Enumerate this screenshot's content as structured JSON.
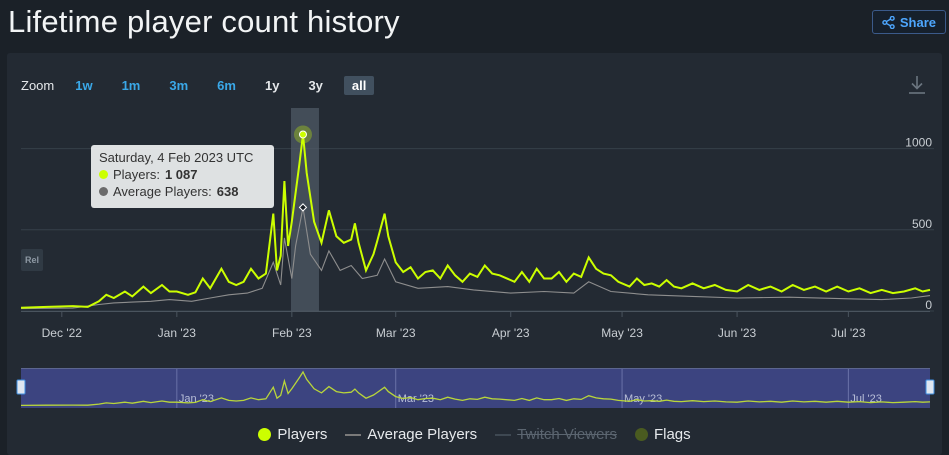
{
  "page": {
    "title": "Lifetime player count history"
  },
  "share": {
    "label": "Share",
    "icon": "share-icon"
  },
  "zoom": {
    "label": "Zoom",
    "options": [
      "1w",
      "1m",
      "3m",
      "6m",
      "1y",
      "3y",
      "all"
    ],
    "active": "all"
  },
  "download_icon": "download-icon",
  "rel_badge": "Rel",
  "colors": {
    "players": "#ccff00",
    "average": "#8e8e8e",
    "flags": "#4a5b20",
    "background": "#1b2128",
    "panel": "#232a33",
    "link": "#3aa8e8",
    "navigator_bg": "#3c4480"
  },
  "tooltip": {
    "date": "Saturday, 4 Feb 2023 UTC",
    "players_label": "Players:",
    "players_value": "1 087",
    "avg_label": "Average Players:",
    "avg_value": "638"
  },
  "legend": {
    "players": "Players",
    "average": "Average Players",
    "twitch": "Twitch Viewers",
    "flags": "Flags"
  },
  "chart_data": {
    "type": "line",
    "x_range": [
      "2022-11-20",
      "2023-07-23"
    ],
    "ylim": [
      0,
      1250
    ],
    "y_ticks": [
      0,
      500,
      1000
    ],
    "x_ticks": [
      {
        "date": "2022-12-01",
        "label": "Dec '22"
      },
      {
        "date": "2023-01-01",
        "label": "Jan '23"
      },
      {
        "date": "2023-02-01",
        "label": "Feb '23"
      },
      {
        "date": "2023-03-01",
        "label": "Mar '23"
      },
      {
        "date": "2023-04-01",
        "label": "Apr '23"
      },
      {
        "date": "2023-05-01",
        "label": "May '23"
      },
      {
        "date": "2023-06-01",
        "label": "Jun '23"
      },
      {
        "date": "2023-07-01",
        "label": "Jul '23"
      }
    ],
    "navigator_ticks": [
      {
        "date": "2023-01-01",
        "label": "Jan '23"
      },
      {
        "date": "2023-03-01",
        "label": "Mar '23"
      },
      {
        "date": "2023-05-01",
        "label": "May '23"
      },
      {
        "date": "2023-07-01",
        "label": "Jul '23"
      }
    ],
    "highlight": {
      "date": "2023-02-04",
      "players": 1087,
      "average": 638
    },
    "series": [
      {
        "name": "Players",
        "points": [
          [
            "2022-11-20",
            20
          ],
          [
            "2022-11-27",
            25
          ],
          [
            "2022-12-04",
            30
          ],
          [
            "2022-12-08",
            25
          ],
          [
            "2022-12-11",
            60
          ],
          [
            "2022-12-13",
            100
          ],
          [
            "2022-12-15",
            80
          ],
          [
            "2022-12-18",
            120
          ],
          [
            "2022-12-20",
            90
          ],
          [
            "2022-12-23",
            150
          ],
          [
            "2022-12-25",
            110
          ],
          [
            "2022-12-28",
            160
          ],
          [
            "2022-12-30",
            120
          ],
          [
            "2023-01-01",
            120
          ],
          [
            "2023-01-04",
            100
          ],
          [
            "2023-01-06",
            115
          ],
          [
            "2023-01-08",
            200
          ],
          [
            "2023-01-10",
            140
          ],
          [
            "2023-01-13",
            260
          ],
          [
            "2023-01-15",
            180
          ],
          [
            "2023-01-17",
            160
          ],
          [
            "2023-01-19",
            180
          ],
          [
            "2023-01-21",
            260
          ],
          [
            "2023-01-23",
            200
          ],
          [
            "2023-01-25",
            230
          ],
          [
            "2023-01-27",
            600
          ],
          [
            "2023-01-28",
            250
          ],
          [
            "2023-01-29",
            340
          ],
          [
            "2023-01-30",
            800
          ],
          [
            "2023-01-31",
            400
          ],
          [
            "2023-02-01",
            550
          ],
          [
            "2023-02-03",
            900
          ],
          [
            "2023-02-04",
            1087
          ],
          [
            "2023-02-05",
            850
          ],
          [
            "2023-02-07",
            550
          ],
          [
            "2023-02-09",
            420
          ],
          [
            "2023-02-11",
            620
          ],
          [
            "2023-02-13",
            460
          ],
          [
            "2023-02-15",
            420
          ],
          [
            "2023-02-17",
            440
          ],
          [
            "2023-02-18",
            540
          ],
          [
            "2023-02-19",
            420
          ],
          [
            "2023-02-21",
            250
          ],
          [
            "2023-02-23",
            350
          ],
          [
            "2023-02-24",
            430
          ],
          [
            "2023-02-26",
            600
          ],
          [
            "2023-02-27",
            460
          ],
          [
            "2023-03-01",
            300
          ],
          [
            "2023-03-03",
            240
          ],
          [
            "2023-03-05",
            270
          ],
          [
            "2023-03-07",
            200
          ],
          [
            "2023-03-09",
            240
          ],
          [
            "2023-03-11",
            250
          ],
          [
            "2023-03-13",
            200
          ],
          [
            "2023-03-15",
            280
          ],
          [
            "2023-03-17",
            220
          ],
          [
            "2023-03-19",
            180
          ],
          [
            "2023-03-21",
            230
          ],
          [
            "2023-03-23",
            210
          ],
          [
            "2023-03-25",
            280
          ],
          [
            "2023-03-27",
            230
          ],
          [
            "2023-03-29",
            220
          ],
          [
            "2023-04-02",
            180
          ],
          [
            "2023-04-04",
            240
          ],
          [
            "2023-04-06",
            180
          ],
          [
            "2023-04-08",
            260
          ],
          [
            "2023-04-10",
            200
          ],
          [
            "2023-04-12",
            200
          ],
          [
            "2023-04-14",
            240
          ],
          [
            "2023-04-16",
            180
          ],
          [
            "2023-04-18",
            230
          ],
          [
            "2023-04-20",
            210
          ],
          [
            "2023-04-22",
            330
          ],
          [
            "2023-04-24",
            260
          ],
          [
            "2023-04-26",
            230
          ],
          [
            "2023-04-28",
            220
          ],
          [
            "2023-04-30",
            180
          ],
          [
            "2023-05-03",
            150
          ],
          [
            "2023-05-05",
            200
          ],
          [
            "2023-05-07",
            160
          ],
          [
            "2023-05-09",
            170
          ],
          [
            "2023-05-11",
            150
          ],
          [
            "2023-05-13",
            190
          ],
          [
            "2023-05-15",
            150
          ],
          [
            "2023-05-17",
            140
          ],
          [
            "2023-05-20",
            170
          ],
          [
            "2023-05-23",
            140
          ],
          [
            "2023-05-26",
            160
          ],
          [
            "2023-05-29",
            130
          ],
          [
            "2023-06-01",
            120
          ],
          [
            "2023-06-04",
            160
          ],
          [
            "2023-06-07",
            130
          ],
          [
            "2023-06-10",
            150
          ],
          [
            "2023-06-13",
            120
          ],
          [
            "2023-06-16",
            160
          ],
          [
            "2023-06-19",
            130
          ],
          [
            "2023-06-22",
            150
          ],
          [
            "2023-06-25",
            120
          ],
          [
            "2023-06-28",
            150
          ],
          [
            "2023-07-01",
            120
          ],
          [
            "2023-07-04",
            140
          ],
          [
            "2023-07-07",
            110
          ],
          [
            "2023-07-10",
            130
          ],
          [
            "2023-07-13",
            110
          ],
          [
            "2023-07-16",
            120
          ],
          [
            "2023-07-19",
            140
          ],
          [
            "2023-07-21",
            120
          ],
          [
            "2023-07-23",
            130
          ]
        ]
      },
      {
        "name": "Average Players",
        "points": [
          [
            "2022-11-20",
            15
          ],
          [
            "2022-12-04",
            18
          ],
          [
            "2022-12-11",
            40
          ],
          [
            "2022-12-15",
            50
          ],
          [
            "2022-12-20",
            55
          ],
          [
            "2022-12-25",
            60
          ],
          [
            "2022-12-30",
            70
          ],
          [
            "2023-01-05",
            60
          ],
          [
            "2023-01-10",
            80
          ],
          [
            "2023-01-15",
            100
          ],
          [
            "2023-01-20",
            110
          ],
          [
            "2023-01-24",
            140
          ],
          [
            "2023-01-27",
            300
          ],
          [
            "2023-01-29",
            160
          ],
          [
            "2023-01-30",
            450
          ],
          [
            "2023-02-01",
            200
          ],
          [
            "2023-02-02",
            400
          ],
          [
            "2023-02-04",
            638
          ],
          [
            "2023-02-06",
            350
          ],
          [
            "2023-02-09",
            250
          ],
          [
            "2023-02-11",
            370
          ],
          [
            "2023-02-14",
            250
          ],
          [
            "2023-02-17",
            280
          ],
          [
            "2023-02-20",
            200
          ],
          [
            "2023-02-24",
            220
          ],
          [
            "2023-02-26",
            320
          ],
          [
            "2023-03-01",
            180
          ],
          [
            "2023-03-07",
            140
          ],
          [
            "2023-03-15",
            150
          ],
          [
            "2023-03-22",
            130
          ],
          [
            "2023-04-01",
            110
          ],
          [
            "2023-04-10",
            120
          ],
          [
            "2023-04-18",
            110
          ],
          [
            "2023-04-22",
            180
          ],
          [
            "2023-04-28",
            120
          ],
          [
            "2023-05-08",
            100
          ],
          [
            "2023-05-20",
            90
          ],
          [
            "2023-06-01",
            80
          ],
          [
            "2023-06-15",
            85
          ],
          [
            "2023-07-01",
            75
          ],
          [
            "2023-07-10",
            70
          ],
          [
            "2023-07-18",
            80
          ],
          [
            "2023-07-23",
            95
          ]
        ]
      }
    ]
  }
}
